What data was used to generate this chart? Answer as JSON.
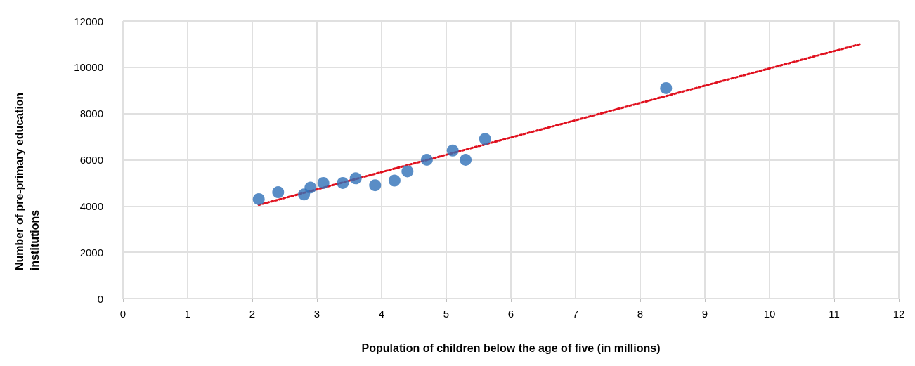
{
  "chart_data": {
    "type": "scatter",
    "xlabel": "Population of children below the age of five (in millions)",
    "ylabel": "Number of pre-primary education institutions",
    "xlim": [
      0,
      12
    ],
    "xticks": [
      0,
      1,
      2,
      3,
      4,
      5,
      6,
      7,
      8,
      9,
      10,
      11,
      12
    ],
    "ylim": [
      0,
      12000
    ],
    "yticks": [
      0,
      2000,
      4000,
      6000,
      8000,
      10000,
      12000
    ],
    "grid": true,
    "marker": "circle",
    "series": [
      {
        "color": "#3070b8",
        "x": [
          2.1,
          2.4,
          2.8,
          2.9,
          3.1,
          3.4,
          3.6,
          3.9,
          4.2,
          4.4,
          4.7,
          5.1,
          5.3,
          5.6,
          8.4
        ],
        "values": [
          4300,
          4600,
          4500,
          4800,
          5000,
          5000,
          5200,
          4900,
          5100,
          5500,
          6000,
          6400,
          6000,
          6900,
          9100
        ]
      },
      {
        "type": "line",
        "color": "#e0101e",
        "line_style": "dotted",
        "marker": "none",
        "x": [
          2.1,
          11.4
        ],
        "values": [
          4050,
          11000
        ]
      }
    ]
  }
}
